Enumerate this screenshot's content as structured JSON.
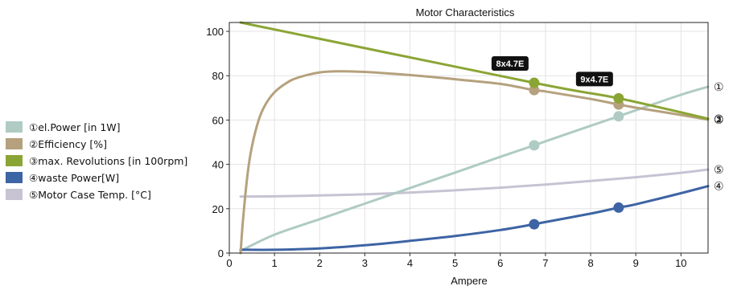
{
  "chart_data": {
    "type": "line",
    "title": "Motor Characteristics",
    "xlabel": "Ampere",
    "ylabel": "",
    "xlim": [
      0,
      10.6
    ],
    "ylim": [
      0,
      104
    ],
    "xticks": [
      "0",
      "1",
      "2",
      "3",
      "4",
      "5",
      "6",
      "7",
      "8",
      "9",
      "10"
    ],
    "yticks": [
      "0",
      "20",
      "40",
      "60",
      "80",
      "100"
    ],
    "grid": true,
    "legend_position": "left",
    "series": [
      {
        "name": "①el.Power [in 1W]",
        "end_marker": "①",
        "color": "#afcbc3",
        "x": [
          0.25,
          1,
          2,
          3,
          4,
          5,
          6,
          6.75,
          7,
          8,
          8.62,
          9,
          10,
          10.6
        ],
        "y": [
          1,
          8.3,
          15.3,
          22.3,
          29.3,
          36.3,
          43.4,
          48.6,
          50.4,
          57.4,
          61.7,
          64.4,
          71.4,
          75.0
        ],
        "markers": [
          {
            "x": 6.75,
            "y": 48.6
          },
          {
            "x": 8.62,
            "y": 61.7
          }
        ]
      },
      {
        "name": "②Efficiency [%]",
        "end_marker": "②",
        "color": "#b5a17d",
        "x": [
          0.25,
          0.3,
          0.4,
          0.5,
          0.65,
          0.8,
          1,
          1.25,
          1.5,
          2,
          2.5,
          3,
          4,
          5,
          6,
          6.75,
          7,
          8,
          8.62,
          9,
          10,
          10.6
        ],
        "y": [
          0,
          14,
          35,
          48,
          60,
          67,
          72.5,
          76.5,
          79,
          81.5,
          82,
          81.7,
          80.3,
          78.4,
          76.3,
          73.5,
          72.9,
          69.5,
          67,
          65.6,
          62.3,
          60.2
        ],
        "markers": [
          {
            "x": 6.75,
            "y": 73.5
          },
          {
            "x": 8.62,
            "y": 67
          }
        ]
      },
      {
        "name": "③max. Revolutions [in 100rpm]",
        "end_marker": "③",
        "color": "#8ba535",
        "x": [
          0.25,
          6.75,
          8.62,
          10.6
        ],
        "y": [
          104,
          76.8,
          69.8,
          60.6
        ],
        "markers": [
          {
            "x": 6.75,
            "y": 76.8,
            "tag": "8x4.7E"
          },
          {
            "x": 8.62,
            "y": 69.8,
            "tag": "9x4.7E"
          }
        ]
      },
      {
        "name": "④waste Power[W]",
        "end_marker": "④",
        "color": "#3d64a4",
        "x": [
          0.25,
          1,
          2,
          3,
          4,
          5,
          6,
          6.75,
          7,
          8,
          8.62,
          9,
          10,
          10.6
        ],
        "y": [
          1.5,
          1.5,
          2.1,
          3.5,
          5.5,
          7.7,
          10.4,
          13,
          14,
          17.8,
          20.5,
          22,
          27,
          30.2
        ],
        "markers": [
          {
            "x": 6.75,
            "y": 13
          },
          {
            "x": 8.62,
            "y": 20.5
          }
        ]
      },
      {
        "name": "⑤Motor Case Temp. [°C]",
        "end_marker": "⑤",
        "color": "#c7c3d3",
        "x": [
          0.25,
          1,
          2,
          3,
          4,
          5,
          6,
          7,
          8,
          9,
          10,
          10.6
        ],
        "y": [
          25.5,
          25.6,
          26,
          26.5,
          27.3,
          28.3,
          29.5,
          30.9,
          32.5,
          34.2,
          36.2,
          37.7
        ],
        "markers": []
      }
    ]
  }
}
